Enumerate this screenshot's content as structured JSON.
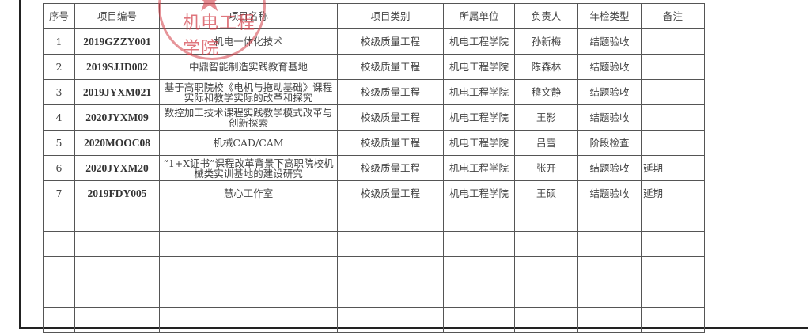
{
  "stamp_text": "机电工程学院",
  "columns": [
    "序号",
    "项目编号",
    "项目名称",
    "项目类别",
    "所属单位",
    "负责人",
    "年检类型",
    "备注"
  ],
  "rows": [
    [
      "1",
      "2019GZZY001",
      "机电一体化技术",
      "校级质量工程",
      "机电工程学院",
      "孙新梅",
      "结题验收",
      ""
    ],
    [
      "2",
      "2019SJJD002",
      "中鼎智能制造实践教育基地",
      "校级质量工程",
      "机电工程学院",
      "陈森林",
      "结题验收",
      ""
    ],
    [
      "3",
      "2019JYXM021",
      "基于高职院校《电机与拖动基础》课程实际和教学实际的改革和探究",
      "校级质量工程",
      "机电工程学院",
      "穆文静",
      "结题验收",
      ""
    ],
    [
      "4",
      "2020JYXM09",
      "数控加工技术课程实践教学模式改革与创新探索",
      "校级质量工程",
      "机电工程学院",
      "王影",
      "结题验收",
      ""
    ],
    [
      "5",
      "2020MOOC08",
      "机械CAD/CAM",
      "校级质量工程",
      "机电工程学院",
      "吕雪",
      "阶段检查",
      ""
    ],
    [
      "6",
      "2020JYXM20",
      "“1+X证书”课程改革背景下高职院校机械类实训基地的建设研究",
      "校级质量工程",
      "机电工程学院",
      "张开",
      "结题验收",
      "延期"
    ],
    [
      "7",
      "2019FDY005",
      "慧心工作室",
      "校级质量工程",
      "机电工程学院",
      "王硕",
      "结题验收",
      "延期"
    ]
  ],
  "empty_rows": 5
}
